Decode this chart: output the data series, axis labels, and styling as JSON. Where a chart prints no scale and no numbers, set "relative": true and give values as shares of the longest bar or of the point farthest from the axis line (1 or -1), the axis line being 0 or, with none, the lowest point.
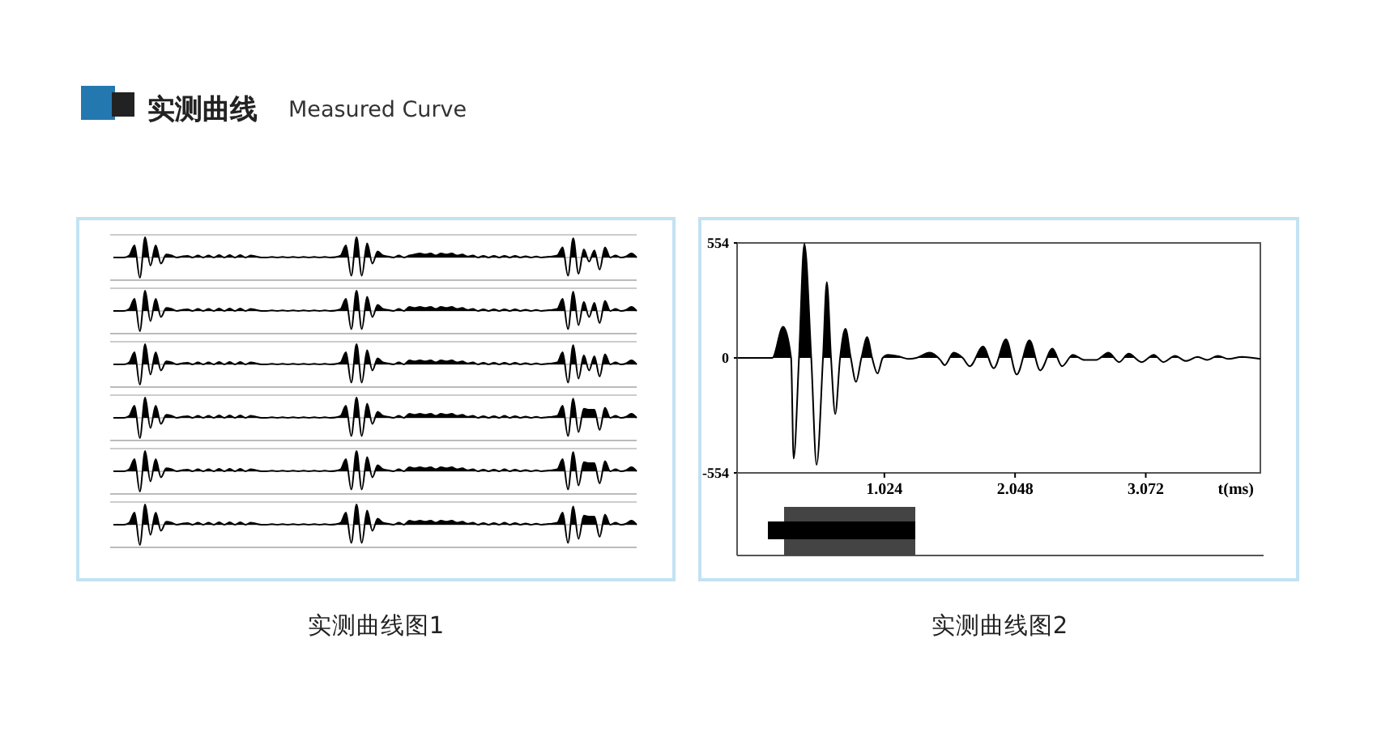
{
  "chart_data": [
    {
      "type": "other",
      "title": "实测曲线",
      "subtitle": "Measured Curve"
    },
    {
      "type": "area",
      "title": "实测曲线图1",
      "relative": true,
      "color": "#000000",
      "categories": [
        null,
        null,
        null,
        null,
        null,
        null,
        null,
        null,
        null,
        null,
        null,
        null,
        null,
        null,
        null,
        null,
        null,
        null,
        null,
        null,
        null,
        null,
        null,
        null,
        null,
        null,
        null,
        null,
        null,
        null,
        null,
        null,
        null,
        null,
        null,
        null,
        null,
        null,
        null,
        null,
        null,
        null,
        null,
        null,
        null,
        null,
        null,
        null,
        null,
        null,
        null,
        null,
        null,
        null,
        null,
        null,
        null,
        null,
        null,
        null,
        null,
        null,
        null,
        null,
        null,
        null,
        null,
        null,
        null,
        null,
        null,
        null,
        null,
        null,
        null,
        null,
        null,
        null,
        null,
        null,
        null,
        null,
        null,
        null,
        null,
        null,
        null,
        null,
        null,
        null,
        null,
        null,
        null,
        null,
        null,
        null,
        null,
        null,
        null,
        null
      ],
      "values": [
        0,
        0,
        0,
        0.1,
        0.6,
        -1,
        1,
        -0.4,
        0.6,
        -0.3,
        0.15,
        0.1,
        0,
        0.05,
        0.08,
        0,
        0.1,
        0,
        0.1,
        0,
        0.12,
        0,
        0.12,
        0,
        0.12,
        0,
        0.1,
        0.05,
        0,
        0,
        0.03,
        0,
        0.03,
        0,
        0.03,
        0,
        0.03,
        0,
        0.03,
        0,
        0.03,
        0,
        0.02,
        0.1,
        0.6,
        -0.9,
        1,
        -0.9,
        0.7,
        -0.3,
        0.3,
        0.1,
        0.05,
        0,
        0.1,
        0,
        0.1,
        0.15,
        0.2,
        0.15,
        0.2,
        0.1,
        0.2,
        0.15,
        0.2,
        0.1,
        0.15,
        0.05,
        0.1,
        0,
        0.08,
        0,
        0.08,
        0,
        0.08,
        0,
        0.08,
        0,
        0.06,
        0,
        0.05,
        0,
        0.03,
        0.05,
        0.1,
        0.5,
        -0.9,
        0.95,
        -0.8,
        0.4,
        -0.2,
        0.35,
        -0.6,
        0.5,
        0,
        0.1,
        0,
        0.05,
        0.2,
        0
      ]
    },
    {
      "type": "area",
      "relative": true,
      "color": "#000000",
      "categories": [
        null,
        null,
        null,
        null,
        null,
        null,
        null,
        null,
        null,
        null,
        null,
        null,
        null,
        null,
        null,
        null,
        null,
        null,
        null,
        null,
        null,
        null,
        null,
        null,
        null,
        null,
        null,
        null,
        null,
        null,
        null,
        null,
        null,
        null,
        null,
        null,
        null,
        null,
        null,
        null,
        null,
        null,
        null,
        null,
        null,
        null,
        null,
        null,
        null,
        null,
        null,
        null,
        null,
        null,
        null,
        null,
        null,
        null,
        null,
        null,
        null,
        null,
        null,
        null,
        null,
        null,
        null,
        null,
        null,
        null,
        null,
        null,
        null,
        null,
        null,
        null,
        null,
        null,
        null,
        null,
        null,
        null,
        null,
        null,
        null,
        null,
        null,
        null,
        null,
        null,
        null,
        null,
        null,
        null,
        null,
        null,
        null,
        null,
        null,
        null
      ],
      "values": [
        0,
        0,
        0,
        0.1,
        0.6,
        -1,
        1,
        -0.5,
        0.6,
        -0.3,
        0.15,
        0.1,
        0,
        0.05,
        0.08,
        0,
        0.1,
        0,
        0.1,
        0,
        0.12,
        0,
        0.12,
        0,
        0.12,
        0,
        0.1,
        0.05,
        0,
        0,
        0.03,
        0,
        0.03,
        0,
        0.03,
        0,
        0.03,
        0,
        0.03,
        0,
        0.03,
        0,
        0.02,
        0.1,
        0.6,
        -0.9,
        1,
        -0.9,
        0.7,
        -0.3,
        0.3,
        0.1,
        0.05,
        0,
        0.1,
        0,
        0.2,
        0.15,
        0.2,
        0.15,
        0.2,
        0.1,
        0.2,
        0.15,
        0.2,
        0.1,
        0.15,
        0.05,
        0.1,
        0,
        0.08,
        0,
        0.08,
        0,
        0.08,
        0,
        0.08,
        0,
        0.06,
        0,
        0.05,
        0,
        0.03,
        0.05,
        0.1,
        0.6,
        -0.9,
        0.95,
        -0.7,
        0.45,
        -0.3,
        0.4,
        -0.6,
        0.5,
        0,
        0.1,
        0,
        0.05,
        0.2,
        0
      ]
    },
    {
      "type": "area",
      "relative": true,
      "color": "#000000",
      "categories": [
        null,
        null,
        null,
        null,
        null,
        null,
        null,
        null,
        null,
        null,
        null,
        null,
        null,
        null,
        null,
        null,
        null,
        null,
        null,
        null,
        null,
        null,
        null,
        null,
        null,
        null,
        null,
        null,
        null,
        null,
        null,
        null,
        null,
        null,
        null,
        null,
        null,
        null,
        null,
        null,
        null,
        null,
        null,
        null,
        null,
        null,
        null,
        null,
        null,
        null,
        null,
        null,
        null,
        null,
        null,
        null,
        null,
        null,
        null,
        null,
        null,
        null,
        null,
        null,
        null,
        null,
        null,
        null,
        null,
        null,
        null,
        null,
        null,
        null,
        null,
        null,
        null,
        null,
        null,
        null,
        null,
        null,
        null,
        null,
        null,
        null,
        null,
        null,
        null,
        null,
        null,
        null,
        null,
        null,
        null,
        null,
        null,
        null,
        null,
        null
      ],
      "values": [
        0,
        0,
        0,
        0.1,
        0.6,
        -1,
        1,
        -0.5,
        0.6,
        -0.3,
        0.15,
        0.1,
        0,
        0.05,
        0.08,
        0,
        0.1,
        0,
        0.1,
        0,
        0.12,
        0,
        0.12,
        0,
        0.12,
        0,
        0.1,
        0.05,
        0,
        0,
        0.03,
        0,
        0.03,
        0,
        0.03,
        0,
        0.03,
        0,
        0.03,
        0,
        0.03,
        0,
        0.02,
        0.1,
        0.6,
        -0.9,
        1,
        -0.9,
        0.7,
        -0.3,
        0.3,
        0.1,
        0.05,
        0,
        0.1,
        0,
        0.2,
        0.15,
        0.2,
        0.15,
        0.2,
        0.1,
        0.2,
        0.15,
        0.2,
        0.1,
        0.15,
        0.05,
        0.1,
        0,
        0.08,
        0,
        0.08,
        0,
        0.08,
        0,
        0.08,
        0,
        0.06,
        0,
        0.05,
        0,
        0.03,
        0.05,
        0.1,
        0.6,
        -0.9,
        0.95,
        -0.7,
        0.45,
        -0.3,
        0.4,
        -0.6,
        0.5,
        0,
        0.1,
        0,
        0.05,
        0.2,
        0
      ]
    },
    {
      "type": "area",
      "relative": true,
      "color": "#000000",
      "categories": [
        null,
        null,
        null,
        null,
        null,
        null,
        null,
        null,
        null,
        null,
        null,
        null,
        null,
        null,
        null,
        null,
        null,
        null,
        null,
        null,
        null,
        null,
        null,
        null,
        null,
        null,
        null,
        null,
        null,
        null,
        null,
        null,
        null,
        null,
        null,
        null,
        null,
        null,
        null,
        null,
        null,
        null,
        null,
        null,
        null,
        null,
        null,
        null,
        null,
        null,
        null,
        null,
        null,
        null,
        null,
        null,
        null,
        null,
        null,
        null,
        null,
        null,
        null,
        null,
        null,
        null,
        null,
        null,
        null,
        null,
        null,
        null,
        null,
        null,
        null,
        null,
        null,
        null,
        null,
        null,
        null,
        null,
        null,
        null,
        null,
        null,
        null,
        null,
        null,
        null,
        null,
        null,
        null,
        null,
        null,
        null,
        null,
        null,
        null,
        null
      ],
      "values": [
        0,
        0,
        0,
        0.1,
        0.6,
        -1,
        1,
        -0.5,
        0.6,
        -0.3,
        0.15,
        0.1,
        0,
        0.05,
        0.08,
        0,
        0.1,
        0,
        0.1,
        0,
        0.12,
        0,
        0.12,
        0,
        0.12,
        0,
        0.1,
        0.05,
        0,
        0,
        0.03,
        0,
        0.03,
        0,
        0.03,
        0,
        0.03,
        0,
        0.03,
        0,
        0.03,
        0,
        0.02,
        0.1,
        0.6,
        -0.9,
        1,
        -0.9,
        0.7,
        -0.3,
        0.3,
        0.1,
        0.05,
        0,
        0.1,
        0,
        0.2,
        0.15,
        0.2,
        0.15,
        0.2,
        0.1,
        0.2,
        0.15,
        0.2,
        0.1,
        0.15,
        0.05,
        0.1,
        0,
        0.08,
        0,
        0.08,
        0,
        0.1,
        0,
        0.08,
        0,
        0.06,
        0,
        0.05,
        0,
        0.03,
        0.05,
        0.1,
        0.6,
        -0.9,
        0.95,
        -0.7,
        0.45,
        0.4,
        0.4,
        -0.6,
        0.5,
        0,
        0.1,
        0,
        0.05,
        0.2,
        0
      ]
    },
    {
      "type": "area",
      "relative": true,
      "color": "#000000",
      "categories": [
        null,
        null,
        null,
        null,
        null,
        null,
        null,
        null,
        null,
        null,
        null,
        null,
        null,
        null,
        null,
        null,
        null,
        null,
        null,
        null,
        null,
        null,
        null,
        null,
        null,
        null,
        null,
        null,
        null,
        null,
        null,
        null,
        null,
        null,
        null,
        null,
        null,
        null,
        null,
        null,
        null,
        null,
        null,
        null,
        null,
        null,
        null,
        null,
        null,
        null,
        null,
        null,
        null,
        null,
        null,
        null,
        null,
        null,
        null,
        null,
        null,
        null,
        null,
        null,
        null,
        null,
        null,
        null,
        null,
        null,
        null,
        null,
        null,
        null,
        null,
        null,
        null,
        null,
        null,
        null,
        null,
        null,
        null,
        null,
        null,
        null,
        null,
        null,
        null,
        null,
        null,
        null,
        null,
        null,
        null,
        null,
        null,
        null,
        null,
        null
      ],
      "values": [
        0,
        0,
        0,
        0.1,
        0.6,
        -1,
        1,
        -0.5,
        0.6,
        -0.3,
        0.15,
        0.1,
        0,
        0.05,
        0.08,
        0,
        0.1,
        0,
        0.1,
        0,
        0.12,
        0,
        0.12,
        0,
        0.12,
        0,
        0.1,
        0.05,
        0,
        0,
        0.03,
        0,
        0.03,
        0,
        0.03,
        0,
        0.03,
        0,
        0.03,
        0,
        0.03,
        0,
        0.02,
        0.1,
        0.6,
        -0.9,
        1,
        -0.9,
        0.7,
        -0.3,
        0.3,
        0.1,
        0.05,
        0,
        0.1,
        0,
        0.2,
        0.15,
        0.2,
        0.15,
        0.2,
        0.1,
        0.2,
        0.15,
        0.2,
        0.1,
        0.15,
        0.05,
        0.1,
        0,
        0.08,
        0,
        0.08,
        0,
        0.1,
        0,
        0.08,
        0,
        0.06,
        0,
        0.05,
        0,
        0.03,
        0.05,
        0.1,
        0.6,
        -0.9,
        0.95,
        -0.7,
        0.45,
        0.4,
        0.4,
        -0.6,
        0.5,
        0,
        0.1,
        0,
        0.05,
        0.2,
        0
      ]
    },
    {
      "type": "area",
      "relative": true,
      "color": "#000000",
      "categories": [
        null,
        null,
        null,
        null,
        null,
        null,
        null,
        null,
        null,
        null,
        null,
        null,
        null,
        null,
        null,
        null,
        null,
        null,
        null,
        null,
        null,
        null,
        null,
        null,
        null,
        null,
        null,
        null,
        null,
        null,
        null,
        null,
        null,
        null,
        null,
        null,
        null,
        null,
        null,
        null,
        null,
        null,
        null,
        null,
        null,
        null,
        null,
        null,
        null,
        null,
        null,
        null,
        null,
        null,
        null,
        null,
        null,
        null,
        null,
        null,
        null,
        null,
        null,
        null,
        null,
        null,
        null,
        null,
        null,
        null,
        null,
        null,
        null,
        null,
        null,
        null,
        null,
        null,
        null,
        null,
        null,
        null,
        null,
        null,
        null,
        null,
        null,
        null,
        null,
        null,
        null,
        null,
        null,
        null,
        null,
        null,
        null,
        null,
        null,
        null
      ],
      "values": [
        0,
        0,
        0,
        0.1,
        0.6,
        -1,
        1,
        -0.5,
        0.6,
        -0.3,
        0.15,
        0.1,
        0,
        0.05,
        0.08,
        0,
        0.1,
        0,
        0.1,
        0,
        0.12,
        0,
        0.12,
        0,
        0.12,
        0,
        0.1,
        0.05,
        0,
        0,
        0.03,
        0,
        0.03,
        0,
        0.03,
        0,
        0.03,
        0,
        0.03,
        0,
        0.03,
        0,
        0.02,
        0.1,
        0.6,
        -0.9,
        1,
        -0.9,
        0.7,
        -0.3,
        0.3,
        0.1,
        0.05,
        0,
        0.1,
        0,
        0.2,
        0.15,
        0.2,
        0.15,
        0.2,
        0.1,
        0.2,
        0.15,
        0.2,
        0.1,
        0.15,
        0.05,
        0.1,
        0,
        0.08,
        0,
        0.08,
        0,
        0.1,
        0,
        0.08,
        0,
        0.06,
        0,
        0.05,
        0,
        0.03,
        0.05,
        0.1,
        0.6,
        -0.9,
        0.9,
        -0.7,
        0.45,
        0.4,
        0.4,
        -0.6,
        0.5,
        0,
        0.1,
        0,
        0.05,
        0.2,
        0
      ]
    },
    {
      "type": "area",
      "title": "实测曲线图2",
      "xlabel": "t(ms)",
      "color": "#000000",
      "xlim": [
        -0.13,
        3.97
      ],
      "xticks": [
        1.024,
        2.048,
        3.072
      ],
      "ylim": [
        -554,
        554
      ],
      "yticks": [
        554,
        0,
        -554
      ],
      "x": [
        -0.125,
        0.146,
        0.23,
        0.293,
        0.313,
        0.355,
        0.397,
        0.451,
        0.493,
        0.543,
        0.573,
        0.606,
        0.639,
        0.677,
        0.719,
        0.761,
        0.802,
        0.844,
        0.89,
        0.928,
        0.97,
        1.011,
        1.053,
        1.149,
        1.212,
        1.275,
        1.379,
        1.463,
        1.496,
        1.567,
        1.638,
        1.693,
        1.797,
        1.881,
        1.977,
        2.061,
        2.161,
        2.245,
        2.341,
        2.416,
        2.5,
        2.592,
        2.683,
        2.78,
        2.863,
        2.938,
        3.039,
        3.135,
        3.21,
        3.302,
        3.386,
        3.478,
        3.553,
        3.637,
        3.72,
        3.825,
        3.97
      ],
      "values": [
        0,
        0,
        150,
        0,
        -485,
        0,
        550,
        0,
        -515,
        0,
        365,
        0,
        -270,
        0,
        140,
        0,
        -115,
        0,
        100,
        0,
        -75,
        0,
        15,
        5,
        -5,
        0,
        25,
        -10,
        -35,
        25,
        0,
        -40,
        55,
        -50,
        90,
        -80,
        85,
        -60,
        45,
        -40,
        15,
        -10,
        -10,
        25,
        -20,
        20,
        -20,
        15,
        -20,
        10,
        -15,
        5,
        -10,
        10,
        -5,
        5,
        -5
      ]
    }
  ]
}
